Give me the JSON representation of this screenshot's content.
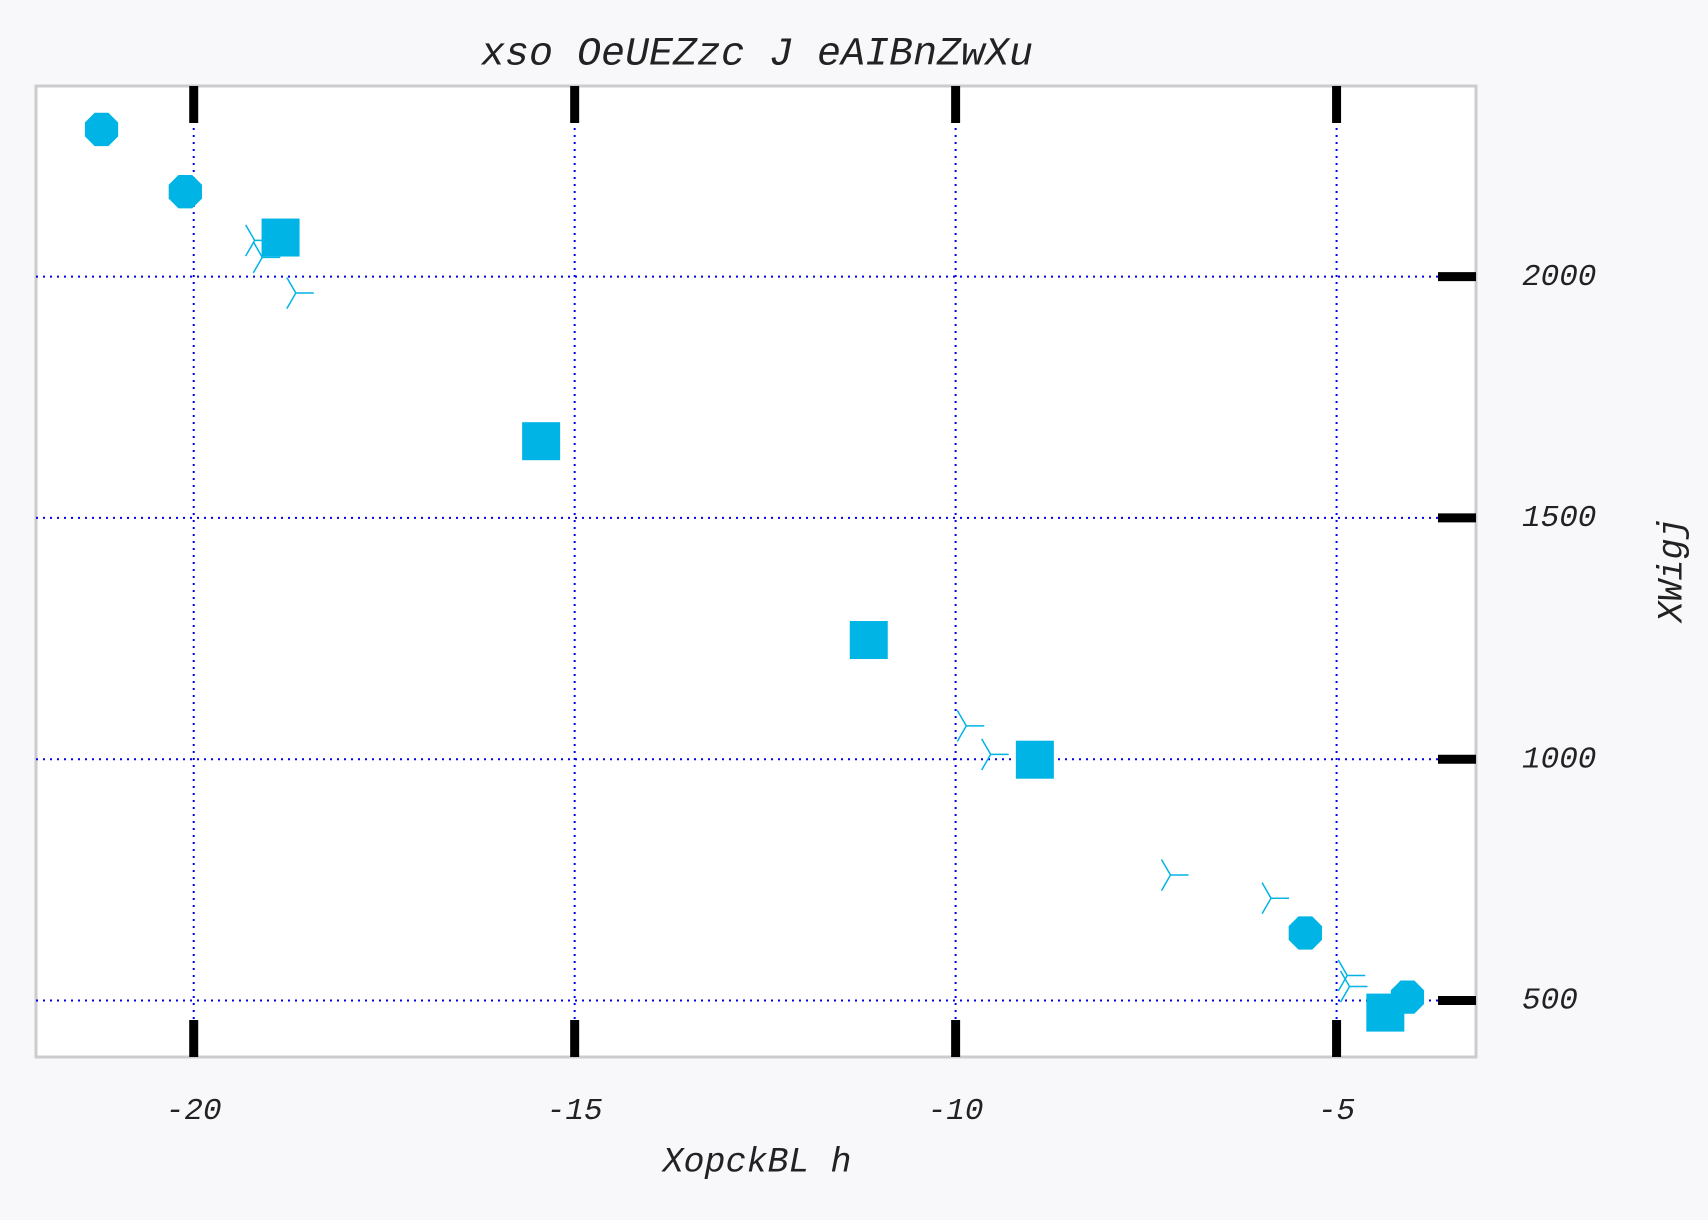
{
  "chart_data": {
    "type": "scatter",
    "title": "xso OeUEZzc J  eAIBnZwXu",
    "x_label": "XopckBL h",
    "y_label": "XWigj",
    "xlim": [
      -22.07,
      -3.17
    ],
    "ylim": [
      383,
      2395
    ],
    "xticks": [
      -20,
      -15,
      -10,
      -5
    ],
    "yticks": [
      500,
      1000,
      1500,
      2000
    ],
    "grid": true,
    "y_axis_side": "right",
    "series": [
      {
        "marker": "octagon",
        "color": "#00b4e6",
        "x": [
          -21.21,
          -20.11,
          -5.41,
          -4.07
        ],
        "values": [
          2305,
          2176,
          640,
          507
        ]
      },
      {
        "marker": "square",
        "color": "#00b4e6",
        "x": [
          -18.86,
          -15.44,
          -11.14,
          -8.96,
          -4.36
        ],
        "values": [
          2081,
          1659,
          1247,
          999,
          475
        ]
      },
      {
        "marker": "tri",
        "color": "#00b4e6",
        "x": [
          -19.2,
          -19.1,
          -18.66,
          -9.86,
          -9.54,
          -7.18,
          -5.86,
          -4.86,
          -4.83
        ],
        "values": [
          2075,
          2040,
          1966,
          1069,
          1010,
          760,
          712,
          552,
          529
        ]
      }
    ]
  }
}
